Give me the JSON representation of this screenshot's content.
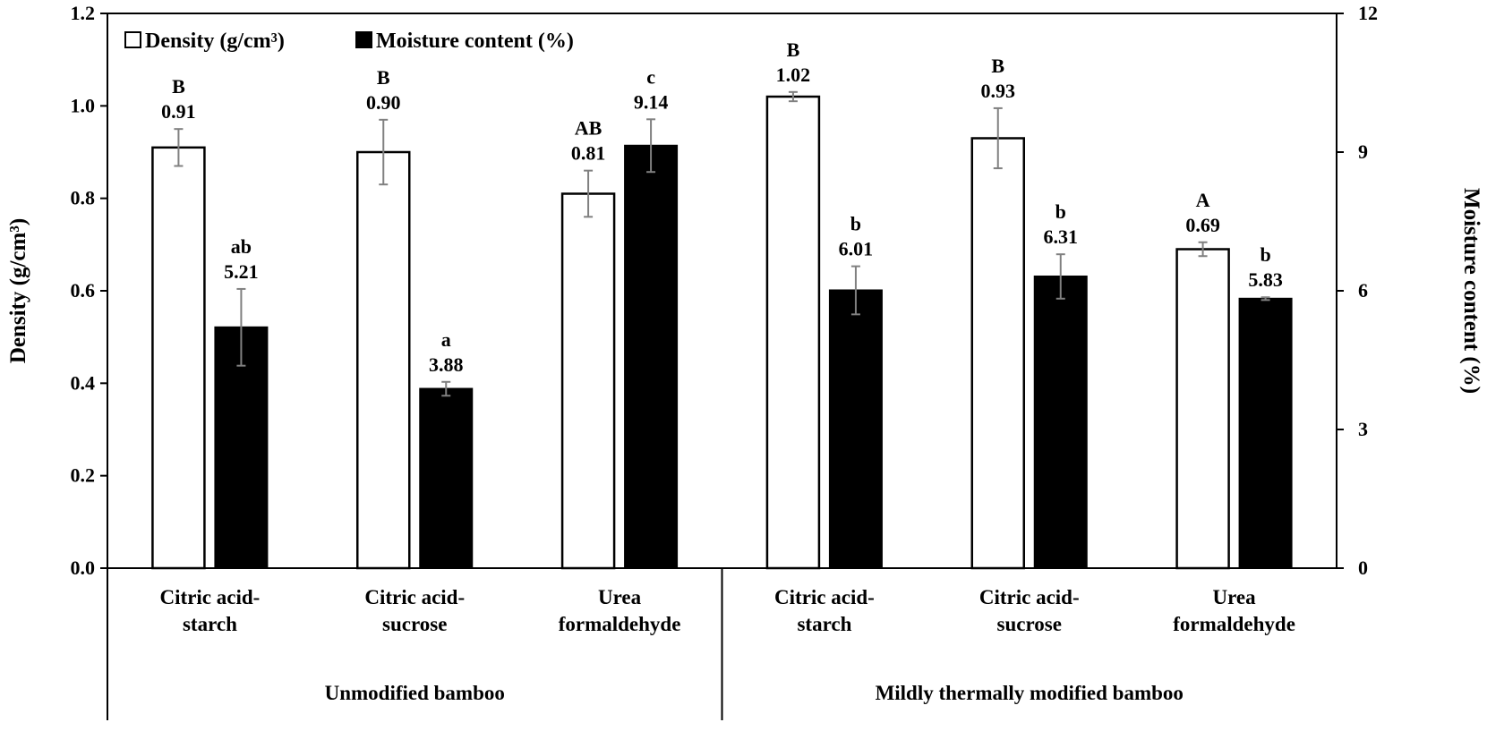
{
  "chart_data": {
    "type": "bar",
    "groups": [
      {
        "label": "Unmodified bamboo",
        "categories": [
          0,
          1,
          2
        ]
      },
      {
        "label": "Mildly thermally modified bamboo",
        "categories": [
          3,
          4,
          5
        ]
      }
    ],
    "categories": [
      [
        "Citric acid-",
        "starch"
      ],
      [
        "Citric acid-",
        "sucrose"
      ],
      [
        "Urea",
        "formaldehyde"
      ],
      [
        "Citric acid-",
        "starch"
      ],
      [
        "Citric acid-",
        "sucrose"
      ],
      [
        "Urea",
        "formaldehyde"
      ]
    ],
    "series": [
      {
        "name": "Density (g/cm³)",
        "axis": "left",
        "fill": "#ffffff",
        "values": [
          0.91,
          0.9,
          0.81,
          1.02,
          0.93,
          0.69
        ],
        "value_labels": [
          "0.91",
          "0.90",
          "0.81",
          "1.02",
          "0.93",
          "0.69"
        ],
        "errors": [
          0.04,
          0.07,
          0.05,
          0.01,
          0.065,
          0.015
        ],
        "significance": [
          "B",
          "B",
          "AB",
          "B",
          "B",
          "A"
        ]
      },
      {
        "name": "Moisture content (%)",
        "axis": "right",
        "fill": "#000000",
        "values": [
          5.21,
          3.88,
          9.14,
          6.01,
          6.31,
          5.83
        ],
        "value_labels": [
          "5.21",
          "3.88",
          "9.14",
          "6.01",
          "6.31",
          "5.83"
        ],
        "errors": [
          0.83,
          0.15,
          0.57,
          0.52,
          0.48,
          0.03
        ],
        "significance": [
          "ab",
          "a",
          "c",
          "b",
          "b",
          "b"
        ]
      }
    ],
    "left_axis": {
      "label": "Density (g/cm³)",
      "ylim": [
        0,
        1.2
      ],
      "ticks": [
        "0.0",
        "0.2",
        "0.4",
        "0.6",
        "0.8",
        "1.0",
        "1.2"
      ]
    },
    "right_axis": {
      "label": "Moisture content (%)",
      "ylim": [
        0,
        12
      ],
      "ticks": [
        "0",
        "3",
        "6",
        "9",
        "12"
      ]
    },
    "legend_position": "top-left",
    "grid": false
  }
}
